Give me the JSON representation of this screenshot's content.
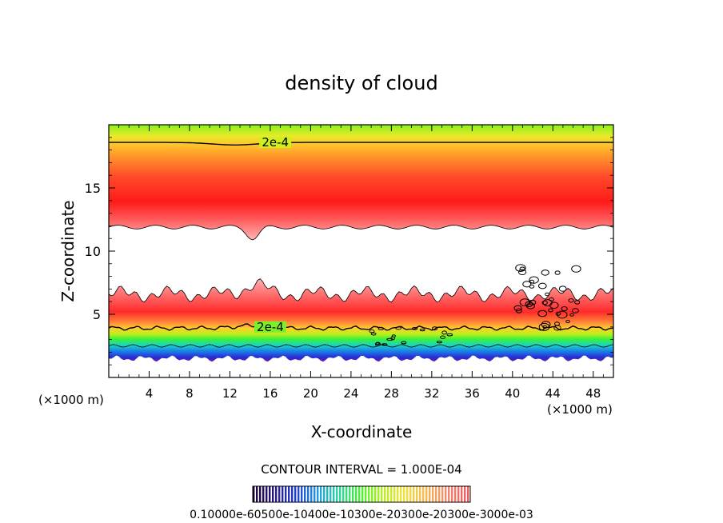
{
  "chart_data": {
    "type": "contour",
    "title": "density of cloud",
    "xlabel": "X-coordinate",
    "ylabel": "Z-coordinate",
    "x_unit_left": "(×1000 m)",
    "x_unit_right": "(×1000 m)",
    "xlim": [
      0,
      50
    ],
    "ylim": [
      0,
      20
    ],
    "x_ticks": [
      4,
      8,
      12,
      16,
      20,
      24,
      28,
      32,
      36,
      40,
      44,
      48
    ],
    "y_ticks": [
      5,
      10,
      15
    ],
    "grid": false,
    "contour_interval_text": "CONTOUR INTERVAL = 1.000E-04",
    "contour_labels": [
      {
        "text": "2e-4",
        "x": 16.5,
        "z": 18.6
      },
      {
        "text": "2e-4",
        "x": 16.0,
        "z": 4.0
      }
    ],
    "layers": [
      {
        "name": "upper cloud",
        "z_bottom": 11.9,
        "z_top": 20.0,
        "peak_z": 14.6,
        "peak_density": 0.00032,
        "top_density": 0.00012
      },
      {
        "name": "lower cloud",
        "z_bottom": 1.3,
        "z_top": 7.0,
        "peak_z": 5.5,
        "peak_density": 0.0003,
        "base_density": 5e-05
      }
    ],
    "colorbar": {
      "labels_text": "0.10000e-60500e-10400e-10300e-20300e-20300e-3000e-03",
      "colors": [
        "#1a0033",
        "#2a1a88",
        "#1f3fd6",
        "#1e9fe0",
        "#2ad7a0",
        "#49f22a",
        "#b8f01c",
        "#f2e23a",
        "#f7b84f",
        "#f38a6e",
        "#f05a5a"
      ]
    }
  }
}
